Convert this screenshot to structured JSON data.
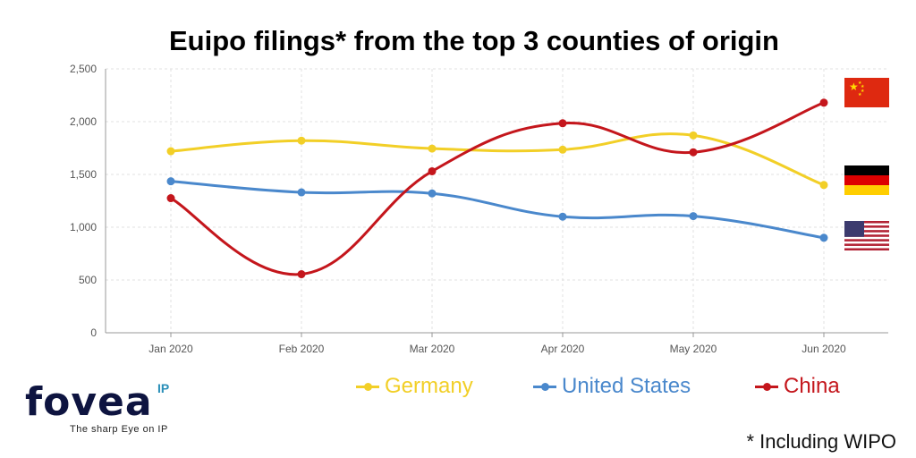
{
  "title": "Euipo filings* from the top 3 counties of origin",
  "footnote": "* Including WIPO",
  "logo": {
    "word": "fovea",
    "superscript": "IP",
    "tagline": "The sharp Eye on IP"
  },
  "chart_data": {
    "type": "line",
    "title": "Euipo filings* from the top 3 counties of origin",
    "categories": [
      "Jan 2020",
      "Feb 2020",
      "Mar 2020",
      "Apr 2020",
      "May 2020",
      "Jun 2020"
    ],
    "ylim": [
      0,
      2500
    ],
    "yticks": [
      0,
      500,
      1000,
      1500,
      2000,
      2500
    ],
    "ytick_labels": [
      "0",
      "500",
      "1,000",
      "1,500",
      "2,000",
      "2,500"
    ],
    "grid": true,
    "legend_position": "bottom",
    "series": [
      {
        "name": "Germany",
        "color": "#f2cf27",
        "values": [
          1720,
          1820,
          1745,
          1735,
          1870,
          1400
        ]
      },
      {
        "name": "United States",
        "color": "#4a88cc",
        "values": [
          1435,
          1330,
          1320,
          1100,
          1105,
          900
        ]
      },
      {
        "name": "China",
        "color": "#c4161c",
        "values": [
          1275,
          555,
          1530,
          1985,
          1710,
          2180
        ]
      }
    ],
    "flags": [
      "china-flag",
      "germany-flag",
      "usa-flag"
    ]
  }
}
